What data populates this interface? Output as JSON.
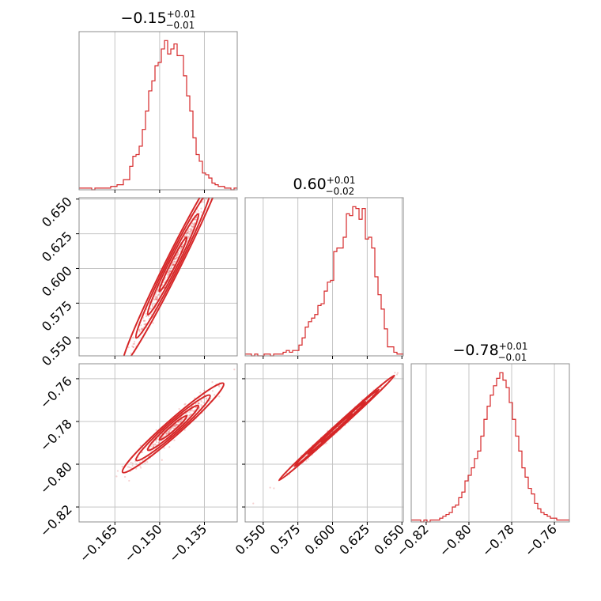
{
  "chart_data": {
    "type": "corner",
    "color": "#d62728",
    "parameters": [
      {
        "title_value": "−0.15",
        "title_plus": "+0.01",
        "title_minus": "−0.01",
        "range": [
          -0.177,
          -0.124
        ],
        "ticks": [
          -0.165,
          -0.15,
          -0.135
        ],
        "tick_labels": [
          "−0.165",
          "−0.150",
          "−0.135"
        ],
        "hist_counts": [
          1,
          1,
          1,
          1,
          0,
          1,
          1,
          1,
          1,
          1,
          2,
          2,
          3,
          3,
          6,
          6,
          14,
          20,
          21,
          26,
          36,
          47,
          59,
          65,
          74,
          76,
          84,
          89,
          81,
          84,
          87,
          80,
          80,
          68,
          56,
          47,
          31,
          21,
          17,
          10,
          9,
          7,
          4,
          3,
          2,
          2,
          1,
          1,
          0,
          1
        ]
      },
      {
        "title_value": "0.60",
        "title_plus": "+0.01",
        "title_minus": "−0.02",
        "range": [
          0.537,
          0.651
        ],
        "ticks": [
          0.55,
          0.575,
          0.6,
          0.625,
          0.65
        ],
        "tick_labels": [
          "0.550",
          "0.575",
          "0.600",
          "0.625",
          "0.650"
        ],
        "hist_counts": [
          1,
          1,
          0,
          1,
          0,
          0,
          1,
          1,
          0,
          1,
          1,
          1,
          2,
          3,
          2,
          3,
          3,
          6,
          10,
          16,
          19,
          21,
          23,
          28,
          29,
          36,
          41,
          42,
          58,
          60,
          60,
          66,
          79,
          78,
          83,
          82,
          76,
          82,
          65,
          66,
          60,
          44,
          34,
          26,
          15,
          5,
          5,
          2,
          1,
          1
        ]
      },
      {
        "title_value": "−0.78",
        "title_plus": "+0.01",
        "title_minus": "−0.01",
        "range": [
          -0.827,
          -0.753
        ],
        "ticks": [
          -0.82,
          -0.8,
          -0.78,
          -0.76
        ],
        "tick_labels": [
          "−0.82",
          "−0.80",
          "−0.78",
          "−0.76"
        ],
        "hist_counts": [
          1,
          1,
          1,
          0,
          1,
          0,
          1,
          1,
          1,
          2,
          3,
          4,
          5,
          8,
          9,
          13,
          16,
          22,
          25,
          29,
          34,
          38,
          46,
          55,
          62,
          68,
          73,
          77,
          80,
          76,
          72,
          64,
          55,
          46,
          38,
          29,
          24,
          18,
          15,
          10,
          7,
          5,
          4,
          3,
          2,
          2,
          1,
          1,
          1,
          1
        ]
      }
    ],
    "pairs": [
      {
        "x": 0,
        "y": 1,
        "slope": 4.3,
        "spread": 0.004
      },
      {
        "x": 0,
        "y": 2,
        "slope": 1.23,
        "spread": 0.0026
      },
      {
        "x": 1,
        "y": 2,
        "slope": 0.59,
        "spread": 0.0009
      }
    ]
  }
}
